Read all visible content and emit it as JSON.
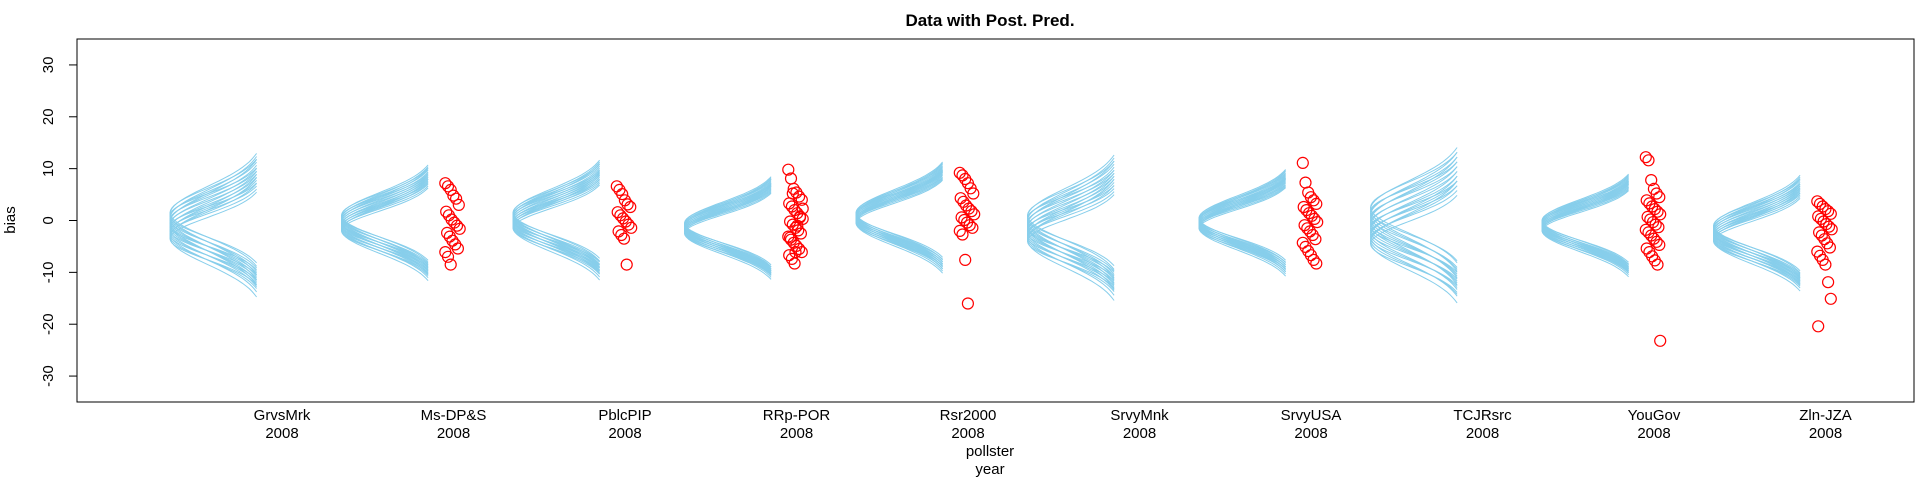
{
  "chart_data": {
    "type": "scatter",
    "title": "Data with Post. Pred.",
    "ylabel": "bias",
    "xlabel": [
      "pollster",
      "year"
    ],
    "ylim": [
      -35,
      35
    ],
    "yticks": [
      30,
      20,
      10,
      0,
      -10,
      -20,
      -30
    ],
    "categories": [
      {
        "pollster": "GrvsMrk",
        "year": "2008"
      },
      {
        "pollster": "Ms-DP&S",
        "year": "2008"
      },
      {
        "pollster": "PblcPIP",
        "year": "2008"
      },
      {
        "pollster": "RRp-POR",
        "year": "2008"
      },
      {
        "pollster": "Rsr2000",
        "year": "2008"
      },
      {
        "pollster": "SrvyMnk",
        "year": "2008"
      },
      {
        "pollster": "SrvyUSA",
        "year": "2008"
      },
      {
        "pollster": "TCJRsrc",
        "year": "2008"
      },
      {
        "pollster": "YouGov",
        "year": "2008"
      },
      {
        "pollster": "Zln-JZA",
        "year": "2008"
      }
    ],
    "posterior_predictive": {
      "color": "#87ceeb",
      "curves_per_group": 20,
      "groups": [
        {
          "mu_min": -3.5,
          "mu_max": 1.5,
          "sd_min": 3.8,
          "sd_max": 5.5
        },
        {
          "mu_min": -2.0,
          "mu_max": 1.0,
          "sd_min": 3.6,
          "sd_max": 4.6
        },
        {
          "mu_min": -1.5,
          "mu_max": 1.5,
          "sd_min": 3.6,
          "sd_max": 4.8
        },
        {
          "mu_min": -2.5,
          "mu_max": -0.5,
          "sd_min": 3.4,
          "sd_max": 4.2
        },
        {
          "mu_min": -0.5,
          "mu_max": 1.5,
          "sd_min": 3.6,
          "sd_max": 4.6
        },
        {
          "mu_min": -4.0,
          "mu_max": 1.0,
          "sd_min": 3.8,
          "sd_max": 5.6
        },
        {
          "mu_min": -1.5,
          "mu_max": 0.5,
          "sd_min": 3.4,
          "sd_max": 4.4
        },
        {
          "mu_min": -4.5,
          "mu_max": 2.5,
          "sd_min": 4.0,
          "sd_max": 5.6
        },
        {
          "mu_min": -2.0,
          "mu_max": 0.0,
          "sd_min": 3.4,
          "sd_max": 4.2
        },
        {
          "mu_min": -4.0,
          "mu_max": -1.0,
          "sd_min": 3.6,
          "sd_max": 4.6
        }
      ]
    },
    "observed": {
      "color": "#ff0000",
      "groups": [
        [],
        [
          7.2,
          6.6,
          5.9,
          4.8,
          4.2,
          3.0,
          1.7,
          1.0,
          0.2,
          -0.4,
          -1.0,
          -1.6,
          -2.4,
          -3.1,
          -3.9,
          -4.6,
          -5.4,
          -6.1,
          -7.0,
          -8.5
        ],
        [
          6.6,
          5.9,
          5.1,
          3.9,
          3.1,
          2.6,
          1.6,
          1.0,
          0.4,
          -0.2,
          -0.8,
          -1.4,
          -2.1,
          -2.8,
          -3.5,
          -8.5
        ],
        [
          9.8,
          8.1,
          6.1,
          5.4,
          4.6,
          4.0,
          3.3,
          2.7,
          2.0,
          1.4,
          0.8,
          0.3,
          -0.2,
          -0.8,
          -1.4,
          -1.9,
          -2.5,
          -3.1,
          -3.7,
          -4.3,
          -4.9,
          -5.5,
          -6.1,
          -6.7,
          -7.4,
          -8.3,
          -1.0,
          0.6,
          2.3,
          -3.3,
          5.2,
          -6.1
        ],
        [
          9.2,
          8.7,
          8.0,
          7.2,
          6.2,
          5.2,
          4.3,
          3.6,
          2.9,
          2.3,
          1.8,
          1.2,
          0.6,
          0.1,
          -0.4,
          -0.9,
          -1.4,
          -2.0,
          -2.7,
          -7.6,
          -16.0
        ],
        [],
        [
          11.1,
          7.3,
          5.4,
          4.5,
          3.9,
          3.2,
          2.6,
          2.0,
          1.4,
          0.9,
          0.3,
          -0.3,
          -0.9,
          -1.5,
          -2.1,
          -2.8,
          -3.6,
          -4.3,
          -5.1,
          -5.9,
          -6.7,
          -7.6,
          -8.3
        ],
        [],
        [
          12.2,
          11.6,
          7.8,
          6.1,
          5.2,
          4.5,
          3.9,
          3.3,
          2.7,
          2.2,
          1.7,
          1.2,
          0.7,
          0.2,
          -0.3,
          -0.8,
          -1.3,
          -1.8,
          -2.3,
          -2.9,
          -3.5,
          -4.1,
          -4.7,
          -5.4,
          -6.1,
          -6.9,
          -7.7,
          -8.5,
          -23.2
        ],
        [
          3.7,
          3.2,
          2.7,
          2.2,
          1.8,
          1.3,
          0.8,
          0.3,
          -0.2,
          -0.7,
          -1.2,
          -1.7,
          -2.3,
          -2.9,
          -3.6,
          -4.4,
          -5.2,
          -6.0,
          -6.8,
          -7.6,
          -8.5,
          -11.9,
          -15.1,
          -20.4
        ]
      ]
    }
  }
}
